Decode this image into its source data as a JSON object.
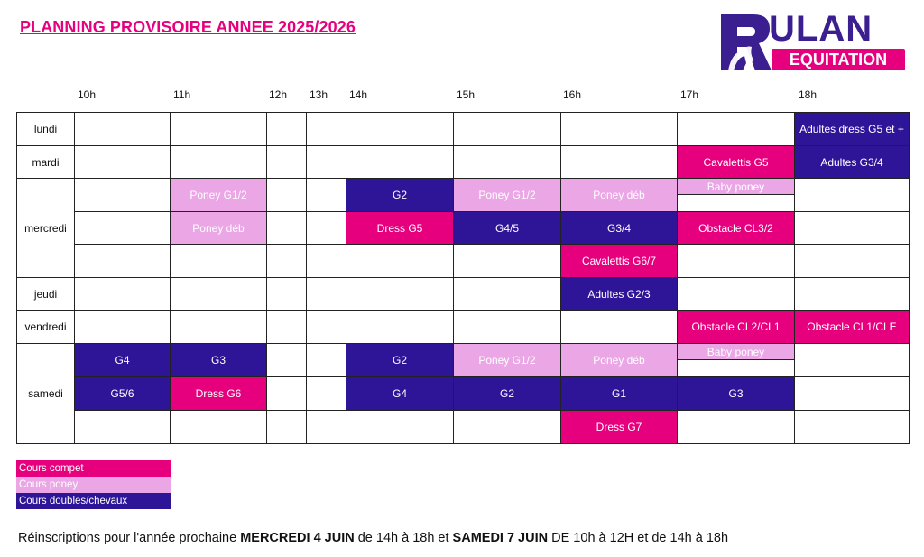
{
  "title": "PLANNING PROVISOIRE ANNEE 2025/2026",
  "logo": {
    "top": "ULAN",
    "bottom": "EQUITATION"
  },
  "hours": [
    "10h",
    "11h",
    "12h",
    "13h",
    "14h",
    "15h",
    "16h",
    "17h",
    "18h"
  ],
  "days": {
    "lundi": "lundi",
    "mardi": "mardi",
    "mercredi": "mercredi",
    "jeudi": "jeudi",
    "vendredi": "vendredi",
    "samedi": "samedi"
  },
  "slots": {
    "lundi_18": "Adultes dress G5 et +",
    "mardi_17": "Cavalettis G5",
    "mardi_18": "Adultes G3/4",
    "mer1_11": "Poney G1/2",
    "mer1_14": "G2",
    "mer1_15": "Poney G1/2",
    "mer1_16": "Poney déb",
    "mer1_17": "Baby poney",
    "mer2_11": "Poney déb",
    "mer2_14": "Dress G5",
    "mer2_15": "G4/5",
    "mer2_16": "G3/4",
    "mer2_17": "Obstacle CL3/2",
    "mer3_16": "Cavalettis G6/7",
    "jeudi_16": "Adultes G2/3",
    "ven_17": "Obstacle CL2/CL1",
    "ven_18": "Obstacle CL1/CLE",
    "sam1_10": "G4",
    "sam1_11": "G3",
    "sam1_14": "G2",
    "sam1_15": "Poney G1/2",
    "sam1_16": "Poney déb",
    "sam1_17": "Baby poney",
    "sam2_10": "G5/6",
    "sam2_11": "Dress G6",
    "sam2_14": "G4",
    "sam2_15": "G2",
    "sam2_16": "G1",
    "sam2_17": "G3",
    "sam3_16": "Dress G7"
  },
  "legend": {
    "compet": "Cours compet",
    "poney": "Cours poney",
    "double": "Cours doubles/chevaux"
  },
  "colors": {
    "compet": "#e6007e",
    "poney": "#eba6e6",
    "double": "#2e1497",
    "brand": "#3b1e8f"
  },
  "note": {
    "p1": "Réinscriptions pour l'année prochaine ",
    "b1": "MERCREDI 4 JUIN",
    "p2": " de 14h à 18h et ",
    "b2": "SAMEDI 7 JUIN",
    "p3": " DE 10h à 12H et de 14h à 18h"
  }
}
